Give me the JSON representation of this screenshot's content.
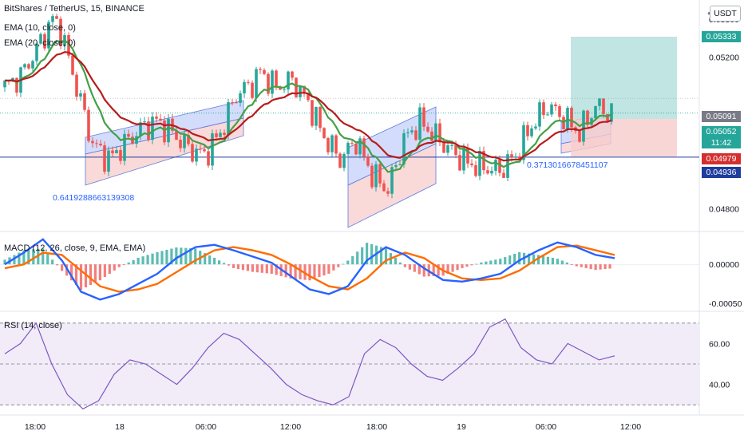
{
  "header": {
    "title": "BitShares / TetherUS, 15, BINANCE",
    "ema10": "EMA (10, close, 0)",
    "ema20": "EMA (20, close, 0)",
    "currency_button": "USDT"
  },
  "panes": {
    "macd_title": "MACD (12, 26, close, 9, EMA, EMA)",
    "rsi_title": "RSI (14, close)"
  },
  "annotations": {
    "left_value": "0.6419288663139308",
    "right_value": "0.3713016678451107"
  },
  "price_tags": {
    "target": "0.05333",
    "stop_price": "0.05091",
    "last_price": "0.05052",
    "countdown": "11:42",
    "ema20_value": "0.04979",
    "horizontal_line": "0.04936"
  },
  "colors": {
    "bull": "#26a69a",
    "bear": "#ef5350",
    "ema10": "#43a047",
    "ema20": "#b71c1c",
    "macd_line": "#2962ff",
    "signal_line": "#ff6d00",
    "rsi_line": "#7e57c2",
    "channel_blue": "#aebff5",
    "channel_red": "#f6b9b9",
    "target_fill": "#b2dfdb",
    "stop_fill": "#f8cccc"
  },
  "chart_data": [
    {
      "type": "candlestick",
      "title": "BitShares / TetherUS, 15, BINANCE",
      "ylim": [
        0.0474,
        0.0535
      ],
      "y_ticks": [
        0.053,
        0.052,
        0.049,
        0.048
      ],
      "y_tick_labels": [
        "0.05300",
        "0.05200",
        "0.04900",
        "0.04800"
      ],
      "x_tick_labels": [
        "18:00",
        "18",
        "06:00",
        "12:00",
        "18:00",
        "19",
        "06:00",
        "12:00"
      ],
      "series": [
        {
          "name": "EMA (10, close, 0)"
        },
        {
          "name": "EMA (20, close, 0)"
        }
      ],
      "key_levels": {
        "last": 0.05052,
        "ema20": 0.04979,
        "horizontal_line": 0.04936,
        "target": 0.05333,
        "stop": 0.05091
      },
      "close_path": [
        [
          0,
          0.0512
        ],
        [
          4,
          0.0515
        ],
        [
          8,
          0.0522
        ],
        [
          12,
          0.053
        ],
        [
          14,
          0.0527
        ],
        [
          18,
          0.0512
        ],
        [
          22,
          0.0497
        ],
        [
          26,
          0.0493
        ],
        [
          30,
          0.0497
        ],
        [
          34,
          0.0501
        ],
        [
          38,
          0.0503
        ],
        [
          42,
          0.05
        ],
        [
          46,
          0.0496
        ],
        [
          50,
          0.0494
        ],
        [
          54,
          0.05
        ],
        [
          58,
          0.051
        ],
        [
          62,
          0.0513
        ],
        [
          64,
          0.0516
        ],
        [
          68,
          0.0512
        ],
        [
          72,
          0.0514
        ],
        [
          76,
          0.0508
        ],
        [
          80,
          0.0499
        ],
        [
          84,
          0.0493
        ],
        [
          88,
          0.0498
        ],
        [
          92,
          0.0489
        ],
        [
          96,
          0.0485
        ],
        [
          100,
          0.0498
        ],
        [
          104,
          0.0503
        ],
        [
          108,
          0.0499
        ],
        [
          112,
          0.0495
        ],
        [
          116,
          0.0492
        ],
        [
          120,
          0.0491
        ],
        [
          124,
          0.049
        ],
        [
          128,
          0.0494
        ],
        [
          132,
          0.0502
        ],
        [
          136,
          0.0507
        ],
        [
          140,
          0.0504
        ],
        [
          144,
          0.05
        ],
        [
          148,
          0.0507
        ],
        [
          152,
          0.0505
        ]
      ]
    },
    {
      "type": "line",
      "title": "MACD (12, 26, close, 9, EMA, EMA)",
      "ylim": [
        -0.0006,
        0.0004
      ],
      "y_ticks": [
        0.0,
        -0.0005
      ],
      "y_tick_labels": [
        "0.00000",
        "-0.00050"
      ],
      "series": [
        {
          "name": "MACD",
          "values": [
            0.0,
            0.00015,
            0.00032,
            5e-05,
            -0.00035,
            -0.00045,
            -0.00038,
            -0.00025,
            -0.00012,
            8e-05,
            0.00022,
            0.00025,
            0.00018,
            0.0001,
            2e-05,
            -0.00015,
            -0.00032,
            -0.00038,
            -0.00028,
            5e-05,
            0.00022,
            0.00012,
            -5e-05,
            -0.0002,
            -0.00022,
            -0.00018,
            -0.00012,
            5e-05,
            0.00018,
            0.00028,
            0.00022,
            0.00012,
            8e-05
          ]
        },
        {
          "name": "Signal",
          "values": [
            -5e-05,
            0.0,
            0.00015,
            0.00012,
            -8e-05,
            -0.00028,
            -0.00035,
            -0.00032,
            -0.00025,
            -0.0001,
            5e-05,
            0.00018,
            0.00022,
            0.00018,
            0.00012,
            0.0,
            -0.00015,
            -0.00028,
            -0.00032,
            -0.00018,
            5e-05,
            0.00015,
            8e-05,
            -8e-05,
            -0.00018,
            -0.0002,
            -0.00018,
            -8e-05,
            8e-05,
            0.00022,
            0.00024,
            0.00018,
            0.00012
          ]
        }
      ]
    },
    {
      "type": "line",
      "title": "RSI (14, close)",
      "ylim": [
        25,
        75
      ],
      "y_ticks": [
        60,
        40
      ],
      "y_tick_labels": [
        "60.00",
        "40.00"
      ],
      "bands": [
        70,
        50,
        30
      ],
      "series": [
        {
          "name": "RSI",
          "values": [
            55,
            60,
            70,
            50,
            35,
            28,
            32,
            45,
            52,
            50,
            45,
            40,
            48,
            58,
            65,
            62,
            55,
            48,
            40,
            35,
            32,
            30,
            34,
            55,
            62,
            58,
            50,
            44,
            42,
            48,
            55,
            68,
            72,
            58,
            52,
            50,
            60,
            56,
            52,
            54
          ]
        }
      ]
    }
  ]
}
